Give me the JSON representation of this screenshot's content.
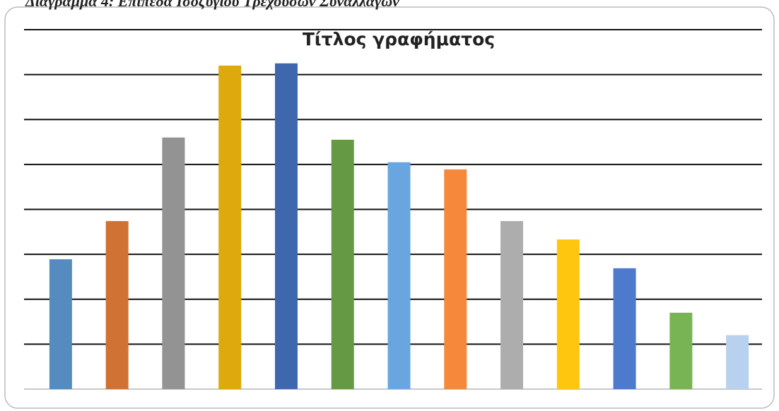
{
  "caption": "Διάγραμμα 4: Επίπεδα Ισοζυγίου Τρεχουσών Συναλλαγών",
  "chart_data": {
    "type": "bar",
    "title": "Τίτλος γραφήματος",
    "categories": [
      null,
      null,
      null,
      null,
      null,
      null,
      null,
      null,
      null,
      null,
      null,
      null,
      null
    ],
    "values": [
      2.89,
      3.74,
      5.6,
      7.2,
      7.25,
      5.55,
      5.05,
      4.89,
      3.74,
      3.33,
      2.69,
      1.7,
      1.2
    ],
    "colors": [
      "#558bbf",
      "#d07233",
      "#939393",
      "#dea90d",
      "#3f67ad",
      "#659943",
      "#69a6e0",
      "#f5883b",
      "#adadad",
      "#fec60f",
      "#4d7acc",
      "#79b454",
      "#b8d1ee"
    ],
    "ylim": [
      0,
      8
    ],
    "yticks": [
      0,
      1,
      2,
      3,
      4,
      5,
      6,
      7,
      8
    ],
    "grid": true
  }
}
